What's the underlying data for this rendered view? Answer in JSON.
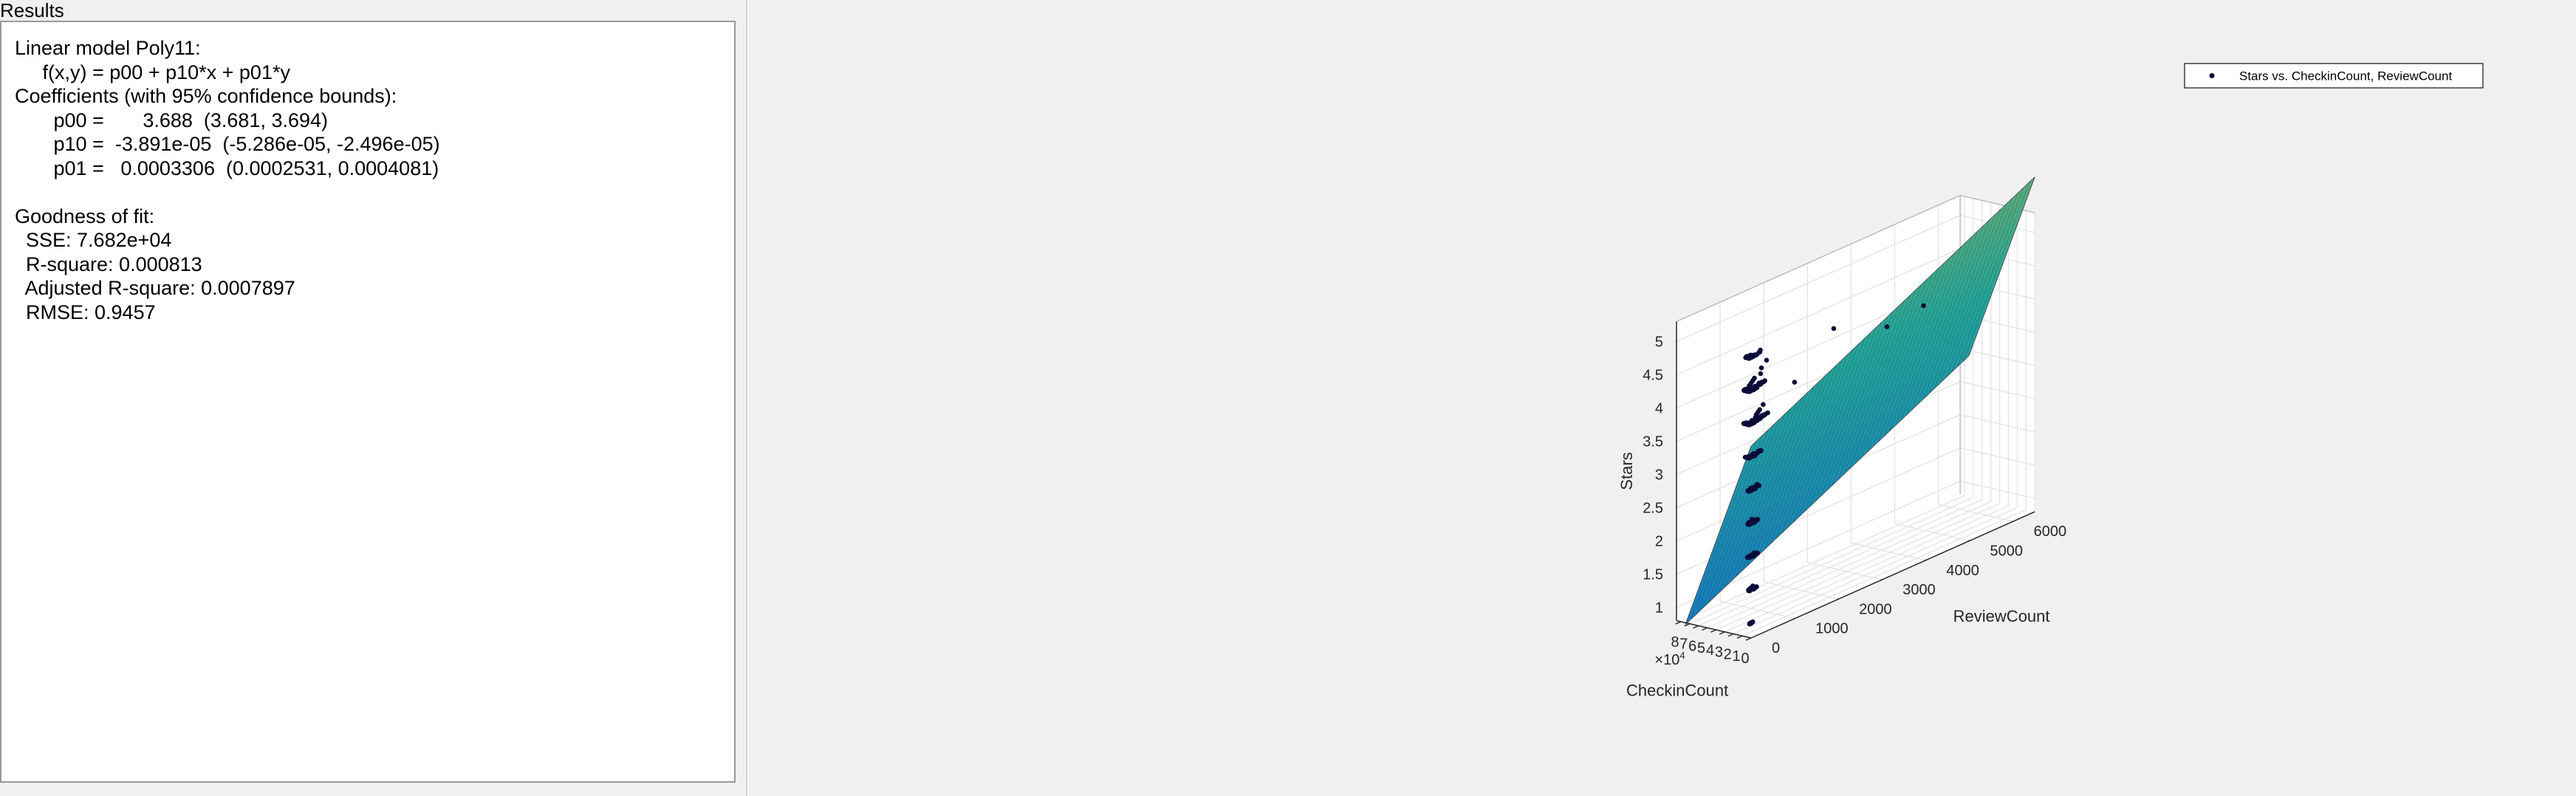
{
  "panel": {
    "title": "Results",
    "lines": [
      "Linear model Poly11:",
      "     f(x,y) = p00 + p10*x + p01*y",
      "Coefficients (with 95% confidence bounds):",
      "       p00 =       3.688  (3.681, 3.694)",
      "       p10 =  -3.891e-05  (-5.286e-05, -2.496e-05)",
      "       p01 =   0.0003306  (0.0002531, 0.0004081)",
      "",
      "Goodness of fit:",
      "  SSE: 7.682e+04",
      "  R-square: 0.000813",
      "  Adjusted R-square: 0.0007897",
      "  RMSE: 0.9457"
    ]
  },
  "chart_data": {
    "type": "scatter",
    "surface": {
      "p00": 3.688,
      "p10": -3.891e-05,
      "p01": 0.0003306
    },
    "xlabel": "CheckinCount",
    "ylabel": "ReviewCount",
    "zlabel": "Stars",
    "x_exponent": "×10",
    "x_exponent_power": "4",
    "xlim": [
      0,
      85000
    ],
    "ylim": [
      0,
      6500
    ],
    "zlim": [
      0.8,
      5.3
    ],
    "xticks": [
      0,
      10000,
      20000,
      30000,
      40000,
      50000,
      60000,
      70000,
      80000
    ],
    "xticklabels": [
      "0",
      "1",
      "2",
      "3",
      "4",
      "5",
      "6",
      "7",
      "8"
    ],
    "yticks": [
      0,
      1000,
      2000,
      3000,
      4000,
      5000,
      6000
    ],
    "yticklabels": [
      "0",
      "1000",
      "2000",
      "3000",
      "4000",
      "5000",
      "6000"
    ],
    "zticks": [
      1,
      1.5,
      2,
      2.5,
      3,
      3.5,
      4,
      4.5,
      5
    ],
    "zticklabels": [
      "1",
      "1.5",
      "2",
      "2.5",
      "3",
      "3.5",
      "4",
      "4.5",
      "5"
    ],
    "legend": {
      "label": "Stars vs. CheckinCount, ReviewCount",
      "location": "top-right"
    },
    "grid": true,
    "colors": {
      "surface_low": "#0a5ad8",
      "surface_mid": "#22b4a8",
      "surface_high": "#f8ba2c",
      "points": "#0b0b38"
    },
    "points": [
      {
        "x": 12000,
        "y": 200,
        "z": 4.5
      },
      {
        "x": 15000,
        "y": 300,
        "z": 4.5
      },
      {
        "x": 18000,
        "y": 400,
        "z": 4.5
      },
      {
        "x": 21000,
        "y": 500,
        "z": 4.5
      },
      {
        "x": 24000,
        "y": 700,
        "z": 4.5
      },
      {
        "x": 33000,
        "y": 900,
        "z": 4.5
      },
      {
        "x": 42000,
        "y": 1200,
        "z": 4.5
      },
      {
        "x": 45000,
        "y": 2800,
        "z": 4.5
      },
      {
        "x": 10000,
        "y": 300,
        "z": 4.0
      },
      {
        "x": 14000,
        "y": 400,
        "z": 4.0
      },
      {
        "x": 17000,
        "y": 500,
        "z": 4.0
      },
      {
        "x": 20000,
        "y": 600,
        "z": 4.0
      },
      {
        "x": 26000,
        "y": 800,
        "z": 4.0
      },
      {
        "x": 40000,
        "y": 1800,
        "z": 4.0
      },
      {
        "x": 64000,
        "y": 4400,
        "z": 4.0
      },
      {
        "x": 72000,
        "y": 5400,
        "z": 4.0
      },
      {
        "x": 5000,
        "y": 200,
        "z": 3.5
      },
      {
        "x": 7000,
        "y": 300,
        "z": 3.5
      },
      {
        "x": 6000,
        "y": 200,
        "z": 3.0
      },
      {
        "x": 8000,
        "y": 300,
        "z": 3.0
      },
      {
        "x": 6000,
        "y": 200,
        "z": 2.5
      },
      {
        "x": 9000,
        "y": 200,
        "z": 2.5
      },
      {
        "x": 5000,
        "y": 100,
        "z": 2.0
      },
      {
        "x": 7000,
        "y": 200,
        "z": 2.0
      },
      {
        "x": 6000,
        "y": 100,
        "z": 1.5
      },
      {
        "x": 8000,
        "y": 200,
        "z": 1.5
      },
      {
        "x": 3000,
        "y": 50,
        "z": 1.0
      }
    ]
  }
}
